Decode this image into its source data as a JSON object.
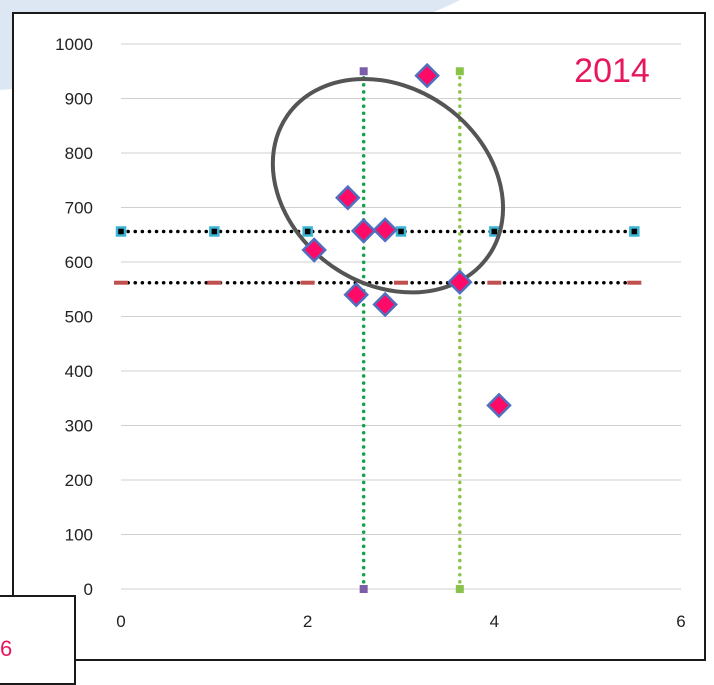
{
  "chart_data": {
    "type": "scatter",
    "annotation": "2014",
    "xlim": [
      0,
      6
    ],
    "ylim": [
      0,
      1000
    ],
    "x_ticks": [
      0,
      2,
      4,
      6
    ],
    "y_ticks": [
      0,
      100,
      200,
      300,
      400,
      500,
      600,
      700,
      800,
      900,
      1000
    ],
    "grid": "horizontal",
    "points": [
      {
        "x": 2.07,
        "y": 622
      },
      {
        "x": 2.43,
        "y": 718
      },
      {
        "x": 2.6,
        "y": 657
      },
      {
        "x": 2.83,
        "y": 659
      },
      {
        "x": 2.52,
        "y": 540
      },
      {
        "x": 2.83,
        "y": 522
      },
      {
        "x": 3.28,
        "y": 942
      },
      {
        "x": 3.63,
        "y": 563
      },
      {
        "x": 4.05,
        "y": 337
      }
    ],
    "reference_lines": [
      {
        "orientation": "horizontal",
        "value": 656,
        "x_from": 0,
        "x_to": 5.5,
        "color": "#000000",
        "marker_color": "#3bb5d6",
        "marker_x": [
          0,
          1,
          2,
          3,
          4,
          5.5
        ]
      },
      {
        "orientation": "horizontal",
        "value": 562,
        "x_from": 0,
        "x_to": 5.5,
        "color": "#000000",
        "marker_color": "#c0504d",
        "marker_x": [
          0,
          1,
          2,
          3,
          4,
          5.5
        ]
      },
      {
        "orientation": "vertical",
        "value": 2.6,
        "y_from": 0,
        "y_to": 950,
        "color": "#12a14b",
        "marker_color": "#7b5ea7"
      },
      {
        "orientation": "vertical",
        "value": 3.63,
        "y_from": 0,
        "y_to": 950,
        "color": "#8bc34a",
        "marker_color": "#8bc34a"
      }
    ],
    "highlight_ellipse": {
      "cx": 2.86,
      "cy": 740,
      "rx_units": 1.05,
      "ry_units": 225,
      "rotation_deg": 35
    }
  },
  "colors": {
    "point_fill": "#ff0a67",
    "point_stroke": "#4f6fbf",
    "gridline": "#d0d0d0",
    "annotation": "#e8175d",
    "swoosh": "#dde7f3"
  },
  "overlay": {
    "bottom_box_text": "6"
  }
}
